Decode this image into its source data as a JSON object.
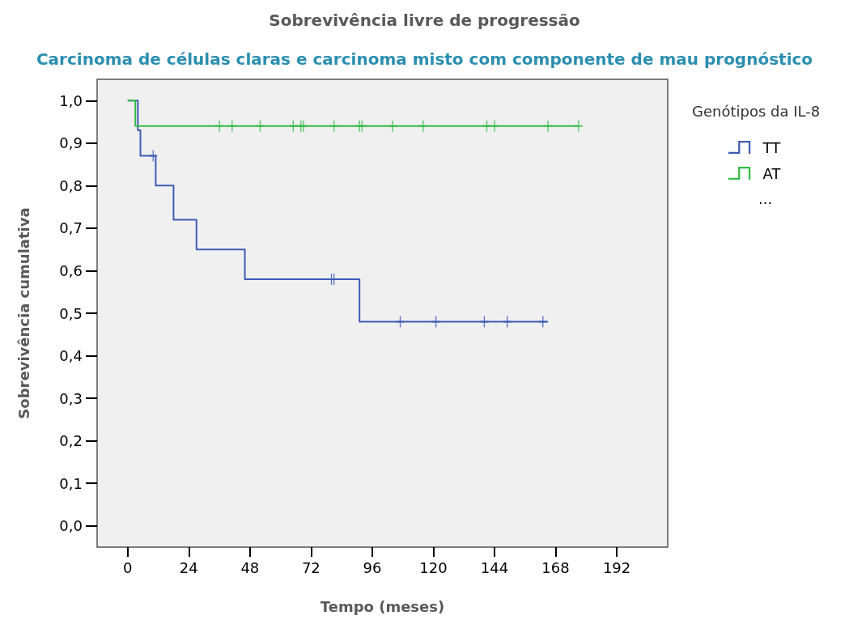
{
  "chart_data": {
    "type": "step",
    "title": "Sobrevivência livre de progressão",
    "subtitle": "Carcinoma de células claras e carcinoma misto com componente de mau prognóstico",
    "xlabel": "Tempo (meses)",
    "ylabel": "Sobrevivência cumulativa",
    "legend_title": "Genótipos da IL-8",
    "annotations": [
      "..."
    ],
    "xlim": [
      -12,
      212
    ],
    "xticks": [
      0,
      24,
      48,
      72,
      96,
      120,
      144,
      168,
      192
    ],
    "ylim": [
      -0.05,
      1.05
    ],
    "yticks": [
      {
        "value": 0,
        "label": "0,0"
      },
      {
        "value": 0.1,
        "label": "0,1"
      },
      {
        "value": 0.2,
        "label": "0,2"
      },
      {
        "value": 0.3,
        "label": "0,3"
      },
      {
        "value": 0.4,
        "label": "0,4"
      },
      {
        "value": 0.5,
        "label": "0,5"
      },
      {
        "value": 0.6,
        "label": "0,6"
      },
      {
        "value": 0.7,
        "label": "0,7"
      },
      {
        "value": 0.8,
        "label": "0,8"
      },
      {
        "value": 0.9,
        "label": "0,9"
      },
      {
        "value": 1,
        "label": "1,0"
      }
    ],
    "grid": false,
    "legend": "top right",
    "marker": "none",
    "line_style": "solid",
    "series": [
      {
        "name": "TT",
        "color": "#3f5cb5",
        "x": [
          0,
          4,
          5,
          11,
          18,
          27,
          46,
          91,
          165
        ],
        "values": [
          1.0,
          0.93,
          0.87,
          0.8,
          0.72,
          0.65,
          0.58,
          0.48,
          0.48
        ]
      },
      {
        "name": "AT",
        "color": "#34bb47",
        "x": [
          0,
          3,
          177
        ],
        "values": [
          1.0,
          0.94,
          0.94
        ]
      },
      {
        "type": "scatter",
        "marker": "cross",
        "color": "#3f5cb5",
        "x": [
          10,
          80,
          81,
          107,
          121,
          140,
          149,
          163
        ],
        "values": [
          0.87,
          0.58,
          0.58,
          0.48,
          0.48,
          0.48,
          0.48,
          0.48
        ]
      },
      {
        "type": "scatter",
        "marker": "cross",
        "color": "#34bb47",
        "x": [
          36,
          41,
          52,
          65,
          68,
          69,
          81,
          91,
          92,
          104,
          116,
          141,
          144,
          165,
          177
        ],
        "values": [
          0.94,
          0.94,
          0.94,
          0.94,
          0.94,
          0.94,
          0.94,
          0.94,
          0.94,
          0.94,
          0.94,
          0.94,
          0.94,
          0.94,
          0.94
        ]
      }
    ]
  }
}
